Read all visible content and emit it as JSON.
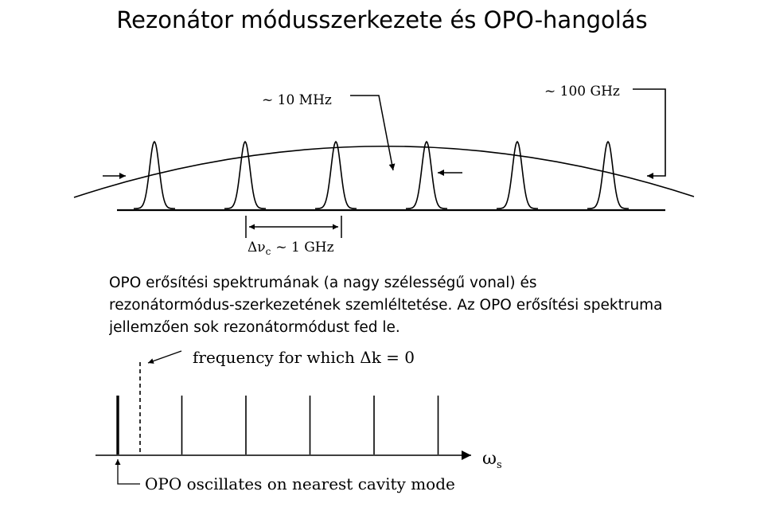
{
  "title": "Rezonátor módusszerkezete és OPO-hangolás",
  "figure_top": {
    "label_cavity_mode_width": "~ 10 MHz",
    "label_gain_bandwidth": "~ 100 GHz",
    "label_mode_spacing": "Δν",
    "label_mode_spacing_subscript": "c",
    "label_mode_spacing_value": "~ 1 GHz",
    "cavity_mode_count": 6
  },
  "caption": "OPO erősítési spektrumának (a nagy szélességű vonal) és rezonátormódus-szerkezetének szemléltetése. Az OPO erősítési spektruma jellemzően sok rezonátormódust fed le.",
  "figure_bottom": {
    "label_phase_match": "frequency for which Δk = 0",
    "label_axis": "ω",
    "label_axis_subscript": "s",
    "label_oscillation": "OPO oscillates on nearest cavity mode",
    "cavity_mode_count": 6
  }
}
